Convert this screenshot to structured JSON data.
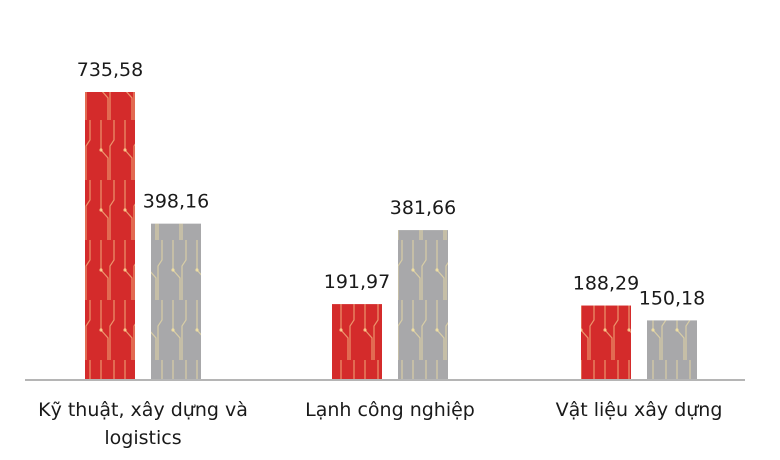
{
  "chart_data": {
    "type": "bar",
    "categories": [
      "Kỹ thuật, xây dựng và logistics",
      "Lạnh công nghiệp",
      "Vật liệu xây dựng"
    ],
    "series": [
      {
        "color": "#d42b2b",
        "values": [
          735.58,
          191.97,
          188.29
        ],
        "value_labels": [
          "735,58",
          "191,97",
          "188,29"
        ]
      },
      {
        "color": "#a8a8aa",
        "values": [
          398.16,
          381.66,
          150.18
        ],
        "value_labels": [
          "398,16",
          "381,66",
          "150,18"
        ]
      }
    ]
  }
}
